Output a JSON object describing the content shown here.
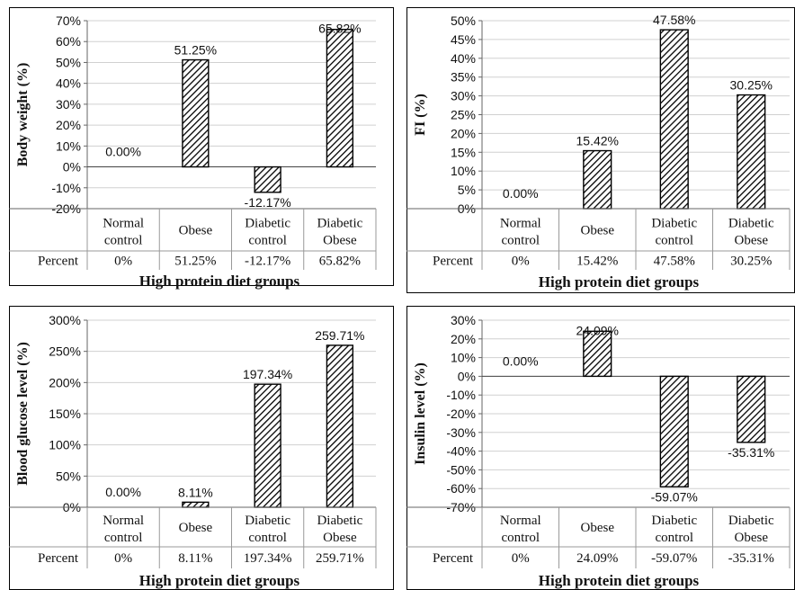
{
  "chart_data": [
    {
      "type": "bar",
      "ylabel": "Body weight (%)",
      "xlabel": "High protein diet groups",
      "categories": [
        "Normal|control",
        "Obese",
        "Diabetic|control",
        "Diabetic|Obese"
      ],
      "values": [
        0,
        51.25,
        -12.17,
        65.82
      ],
      "data_labels": [
        "0.00%",
        "51.25%",
        "-12.17%",
        "65.82%"
      ],
      "table_header": "Percent",
      "table_values": [
        "0%",
        "51.25%",
        "-12.17%",
        "65.82%"
      ],
      "ylim": [
        -20,
        70
      ],
      "y_ticks": [
        -20,
        -10,
        0,
        10,
        20,
        30,
        40,
        50,
        60,
        70
      ],
      "y_tick_labels": [
        "-20%",
        "-10%",
        "0%",
        "10%",
        "20%",
        "30%",
        "40%",
        "50%",
        "60%",
        "70%"
      ],
      "grid": true,
      "pattern": "diagonal-hatch"
    },
    {
      "type": "bar",
      "ylabel": "FI (%)",
      "xlabel": "High protein diet groups",
      "categories": [
        "Normal|control",
        "Obese",
        "Diabetic|control",
        "Diabetic|Obese"
      ],
      "values": [
        0,
        15.42,
        47.58,
        30.25
      ],
      "data_labels": [
        "0.00%",
        "15.42%",
        "47.58%",
        "30.25%"
      ],
      "table_header": "Percent",
      "table_values": [
        "0%",
        "15.42%",
        "47.58%",
        "30.25%"
      ],
      "ylim": [
        0,
        50
      ],
      "y_ticks": [
        0,
        5,
        10,
        15,
        20,
        25,
        30,
        35,
        40,
        45,
        50
      ],
      "y_tick_labels": [
        "0%",
        "5%",
        "10%",
        "15%",
        "20%",
        "25%",
        "30%",
        "35%",
        "40%",
        "45%",
        "50%"
      ],
      "grid": true,
      "pattern": "diagonal-hatch"
    },
    {
      "type": "bar",
      "ylabel": "Blood glucose level (%)",
      "xlabel": "High protein diet groups",
      "categories": [
        "Normal|control",
        "Obese",
        "Diabetic|control",
        "Diabetic|Obese"
      ],
      "values": [
        0,
        8.11,
        197.34,
        259.71
      ],
      "data_labels": [
        "0.00%",
        "8.11%",
        "197.34%",
        "259.71%"
      ],
      "table_header": "Percent",
      "table_values": [
        "0%",
        "8.11%",
        "197.34%",
        "259.71%"
      ],
      "ylim": [
        0,
        300
      ],
      "y_ticks": [
        0,
        50,
        100,
        150,
        200,
        250,
        300
      ],
      "y_tick_labels": [
        "0%",
        "50%",
        "100%",
        "150%",
        "200%",
        "250%",
        "300%"
      ],
      "grid": true,
      "pattern": "diagonal-hatch"
    },
    {
      "type": "bar",
      "ylabel": "Insulin level (%)",
      "xlabel": "High protein diet groups",
      "categories": [
        "Normal|control",
        "Obese",
        "Diabetic|control",
        "Diabetic|Obese"
      ],
      "values": [
        0,
        24.09,
        -59.07,
        -35.31
      ],
      "data_labels": [
        "0.00%",
        "24.09%",
        "-59.07%",
        "-35.31%"
      ],
      "table_header": "Percent",
      "table_values": [
        "0%",
        "24.09%",
        "-59.07%",
        "-35.31%"
      ],
      "ylim": [
        -70,
        30
      ],
      "y_ticks": [
        -70,
        -60,
        -50,
        -40,
        -30,
        -20,
        -10,
        0,
        10,
        20,
        30
      ],
      "y_tick_labels": [
        "-70%",
        "-60%",
        "-50%",
        "-40%",
        "-30%",
        "-20%",
        "-10%",
        "0%",
        "10%",
        "20%",
        "30%"
      ],
      "grid": true,
      "pattern": "diagonal-hatch"
    }
  ]
}
